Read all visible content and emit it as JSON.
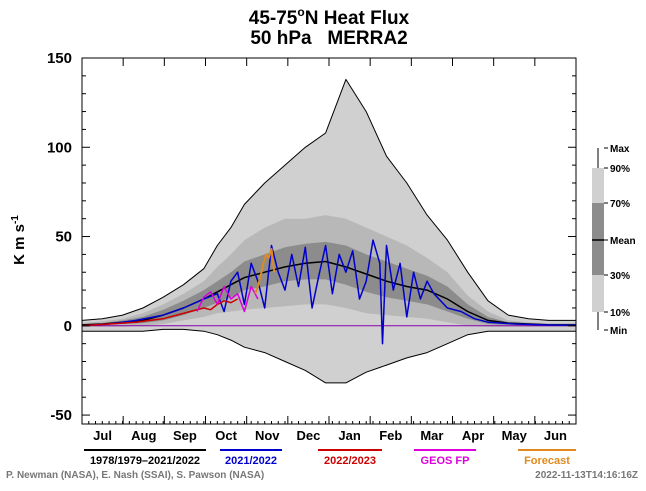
{
  "colors": {
    "envelope": "#d0d0d0",
    "band_10_90": "#b8b8b8",
    "band_30_70": "#8c8c8c",
    "mean": "#000000",
    "max_min": "#000000",
    "y2021": "#0000cc",
    "y2022": "#cc0000",
    "geos_fp": "#dd00dd",
    "forecast": "#e08a1e",
    "zero_line": "#8800aa"
  },
  "chart_data": {
    "type": "area",
    "title": "45-75°N Heat Flux",
    "subtitle": "50 hPa   MERRA2",
    "title_parts": {
      "lead": "45-75",
      "sup": "o",
      "trail": "N Heat Flux"
    },
    "ylabel": "K m s",
    "ylabel_sup": "-1",
    "ylim": [
      -55,
      150
    ],
    "yticks": [
      -50,
      0,
      50,
      100,
      150
    ],
    "ytick_labels": [
      "-50",
      "0",
      "50",
      "100",
      "150"
    ],
    "grid": false,
    "x_range_days": [
      0,
      365
    ],
    "months": [
      "Jul",
      "Aug",
      "Sep",
      "Oct",
      "Nov",
      "Dec",
      "Jan",
      "Feb",
      "Mar",
      "Apr",
      "May",
      "Jun"
    ],
    "legend": [
      {
        "label": "1978/1979–2021/2022",
        "color": "#000000"
      },
      {
        "label": "2021/2022",
        "color": "#0000cc"
      },
      {
        "label": "2022/2023",
        "color": "#cc0000"
      },
      {
        "label": "GEOS FP",
        "color": "#dd00dd"
      },
      {
        "label": "Forecast",
        "color": "#e08a1e"
      }
    ],
    "percentile_bar": {
      "labels": [
        "Max",
        "90%",
        "70%",
        "Mean",
        "30%",
        "10%",
        "Min"
      ]
    },
    "climatology": {
      "days": [
        0,
        15,
        30,
        45,
        60,
        75,
        90,
        100,
        110,
        120,
        135,
        150,
        165,
        180,
        195,
        210,
        225,
        240,
        255,
        270,
        285,
        300,
        315,
        330,
        345,
        365
      ],
      "mean": [
        0.5,
        1,
        2,
        3,
        6,
        10,
        15,
        19,
        23,
        27,
        30,
        33,
        35,
        36,
        33,
        29,
        25,
        22,
        20,
        15,
        8,
        3,
        1.5,
        1,
        0.5,
        0.5
      ],
      "p10": [
        -0.5,
        -0.5,
        -0.5,
        0,
        1,
        3,
        5,
        7,
        8,
        9,
        10,
        11,
        12,
        12,
        10,
        7,
        6,
        5,
        4,
        2,
        0,
        -0.5,
        -0.5,
        -0.5,
        -0.5,
        -0.5
      ],
      "p30": [
        0,
        0.5,
        1,
        1.5,
        3,
        6,
        10,
        13,
        16,
        20,
        22,
        25,
        26,
        26,
        23,
        19,
        16,
        14,
        12,
        8,
        4,
        1,
        0.5,
        0,
        0,
        0
      ],
      "p70": [
        1,
        1.5,
        3,
        5,
        9,
        14,
        20,
        25,
        30,
        36,
        40,
        44,
        46,
        47,
        45,
        40,
        36,
        32,
        28,
        22,
        12,
        5,
        2,
        1.5,
        1,
        1
      ],
      "p90": [
        1.5,
        2.5,
        4,
        7,
        12,
        18,
        25,
        33,
        40,
        48,
        55,
        60,
        60,
        62,
        60,
        55,
        50,
        45,
        38,
        30,
        17,
        8,
        3,
        2,
        1.5,
        1.5
      ],
      "max": [
        3,
        4,
        6,
        10,
        16,
        23,
        32,
        45,
        55,
        68,
        80,
        90,
        100,
        108,
        138,
        120,
        95,
        80,
        62,
        48,
        30,
        14,
        6,
        4,
        3,
        3
      ],
      "min": [
        -3,
        -3,
        -3,
        -3,
        -2,
        -2,
        -3,
        -5,
        -8,
        -12,
        -15,
        -20,
        -25,
        -32,
        -32,
        -26,
        -22,
        -18,
        -15,
        -10,
        -5,
        -3,
        -3,
        -3,
        -3,
        -3
      ]
    },
    "series_2021": {
      "days": [
        0,
        20,
        40,
        60,
        75,
        90,
        100,
        105,
        110,
        115,
        120,
        125,
        130,
        135,
        140,
        145,
        150,
        155,
        160,
        165,
        170,
        175,
        180,
        185,
        190,
        195,
        200,
        205,
        210,
        215,
        220,
        222,
        225,
        230,
        235,
        240,
        245,
        250,
        255,
        260,
        270,
        280,
        290,
        300,
        320,
        340,
        365
      ],
      "values": [
        0,
        1,
        3,
        6,
        10,
        15,
        18,
        8,
        25,
        30,
        12,
        35,
        25,
        10,
        45,
        30,
        20,
        40,
        22,
        44,
        10,
        28,
        45,
        18,
        40,
        30,
        42,
        15,
        25,
        48,
        35,
        -10,
        45,
        20,
        35,
        5,
        30,
        15,
        25,
        18,
        10,
        8,
        4,
        2,
        1,
        0.5,
        0.3
      ]
    },
    "series_2022": {
      "days": [
        0,
        10,
        20,
        30,
        40,
        50,
        60,
        70,
        80,
        90,
        95,
        100,
        105,
        110,
        115
      ],
      "values": [
        0,
        0.5,
        1,
        1.5,
        2,
        3,
        4,
        6,
        8,
        10,
        9,
        12,
        14,
        13,
        15
      ]
    },
    "series_geos_fp": {
      "days": [
        85,
        90,
        95,
        100,
        105,
        110,
        115,
        120,
        125,
        130
      ],
      "values": [
        8,
        16,
        19,
        12,
        22,
        15,
        18,
        8,
        22,
        15
      ]
    },
    "series_forecast": {
      "days": [
        128,
        130,
        132,
        134,
        136,
        138,
        140,
        142
      ],
      "values": [
        18,
        22,
        28,
        35,
        40,
        38,
        43,
        30
      ]
    }
  },
  "footer": {
    "credit": "P. Newman (NASA), E. Nash (SSAI), S. Pawson (NASA)",
    "timestamp": "2022-11-13T14:16:16Z"
  }
}
